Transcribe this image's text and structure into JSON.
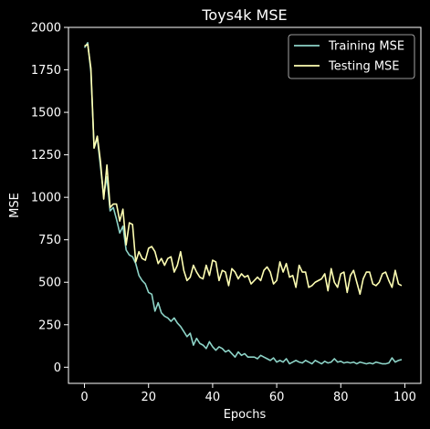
{
  "chart_data": {
    "type": "line",
    "title": "Toys4k MSE",
    "xlabel": "Epochs",
    "ylabel": "MSE",
    "xlim": [
      -5,
      105
    ],
    "ylim": [
      -95,
      2000
    ],
    "xticks": [
      0,
      20,
      40,
      60,
      80,
      100
    ],
    "yticks": [
      0,
      250,
      500,
      750,
      1000,
      1250,
      1500,
      1750,
      2000
    ],
    "grid": false,
    "legend_position": "top-right",
    "background": "#000000",
    "series": [
      {
        "name": "Training MSE",
        "color": "#8dd3c7",
        "x": [
          0,
          1,
          2,
          3,
          4,
          5,
          6,
          7,
          8,
          9,
          10,
          11,
          12,
          13,
          14,
          15,
          16,
          17,
          18,
          19,
          20,
          21,
          22,
          23,
          24,
          25,
          26,
          27,
          28,
          29,
          30,
          31,
          32,
          33,
          34,
          35,
          36,
          37,
          38,
          39,
          40,
          41,
          42,
          43,
          44,
          45,
          46,
          47,
          48,
          49,
          50,
          51,
          52,
          53,
          54,
          55,
          56,
          57,
          58,
          59,
          60,
          61,
          62,
          63,
          64,
          65,
          66,
          67,
          68,
          69,
          70,
          71,
          72,
          73,
          74,
          75,
          76,
          77,
          78,
          79,
          80,
          81,
          82,
          83,
          84,
          85,
          86,
          87,
          88,
          89,
          90,
          91,
          92,
          93,
          94,
          95,
          96,
          97,
          98,
          99
        ],
        "y": [
          1880,
          1910,
          1740,
          1290,
          1350,
          1180,
          1010,
          1120,
          920,
          940,
          870,
          790,
          830,
          690,
          660,
          650,
          610,
          540,
          510,
          490,
          440,
          430,
          330,
          380,
          320,
          300,
          290,
          270,
          290,
          260,
          240,
          210,
          180,
          200,
          130,
          170,
          140,
          130,
          110,
          150,
          120,
          100,
          120,
          110,
          90,
          100,
          80,
          60,
          90,
          70,
          80,
          60,
          60,
          60,
          50,
          70,
          60,
          50,
          40,
          55,
          30,
          40,
          30,
          50,
          20,
          30,
          40,
          30,
          25,
          40,
          30,
          20,
          40,
          30,
          20,
          35,
          25,
          30,
          50,
          30,
          35,
          25,
          30,
          25,
          30,
          20,
          30,
          25,
          20,
          25,
          20,
          30,
          25,
          20,
          20,
          25,
          55,
          30,
          40,
          45
        ]
      },
      {
        "name": "Testing MSE",
        "color": "#ffffb3",
        "x": [
          0,
          1,
          2,
          3,
          4,
          5,
          6,
          7,
          8,
          9,
          10,
          11,
          12,
          13,
          14,
          15,
          16,
          17,
          18,
          19,
          20,
          21,
          22,
          23,
          24,
          25,
          26,
          27,
          28,
          29,
          30,
          31,
          32,
          33,
          34,
          35,
          36,
          37,
          38,
          39,
          40,
          41,
          42,
          43,
          44,
          45,
          46,
          47,
          48,
          49,
          50,
          51,
          52,
          53,
          54,
          55,
          56,
          57,
          58,
          59,
          60,
          61,
          62,
          63,
          64,
          65,
          66,
          67,
          68,
          69,
          70,
          71,
          72,
          73,
          74,
          75,
          76,
          77,
          78,
          79,
          80,
          81,
          82,
          83,
          84,
          85,
          86,
          87,
          88,
          89,
          90,
          91,
          92,
          93,
          94,
          95,
          96,
          97,
          98,
          99
        ],
        "y": [
          1890,
          1900,
          1760,
          1290,
          1360,
          1210,
          990,
          1190,
          940,
          960,
          960,
          860,
          930,
          720,
          850,
          840,
          620,
          680,
          640,
          630,
          700,
          710,
          680,
          610,
          640,
          600,
          640,
          650,
          560,
          600,
          680,
          570,
          510,
          530,
          600,
          560,
          530,
          520,
          600,
          540,
          630,
          620,
          510,
          570,
          560,
          480,
          580,
          560,
          520,
          550,
          530,
          540,
          490,
          510,
          530,
          510,
          570,
          590,
          560,
          490,
          510,
          620,
          560,
          610,
          530,
          540,
          470,
          600,
          560,
          560,
          470,
          480,
          500,
          510,
          520,
          550,
          450,
          580,
          500,
          470,
          550,
          560,
          440,
          540,
          570,
          500,
          430,
          520,
          560,
          560,
          490,
          480,
          500,
          550,
          560,
          510,
          470,
          570,
          490,
          480
        ]
      }
    ]
  }
}
